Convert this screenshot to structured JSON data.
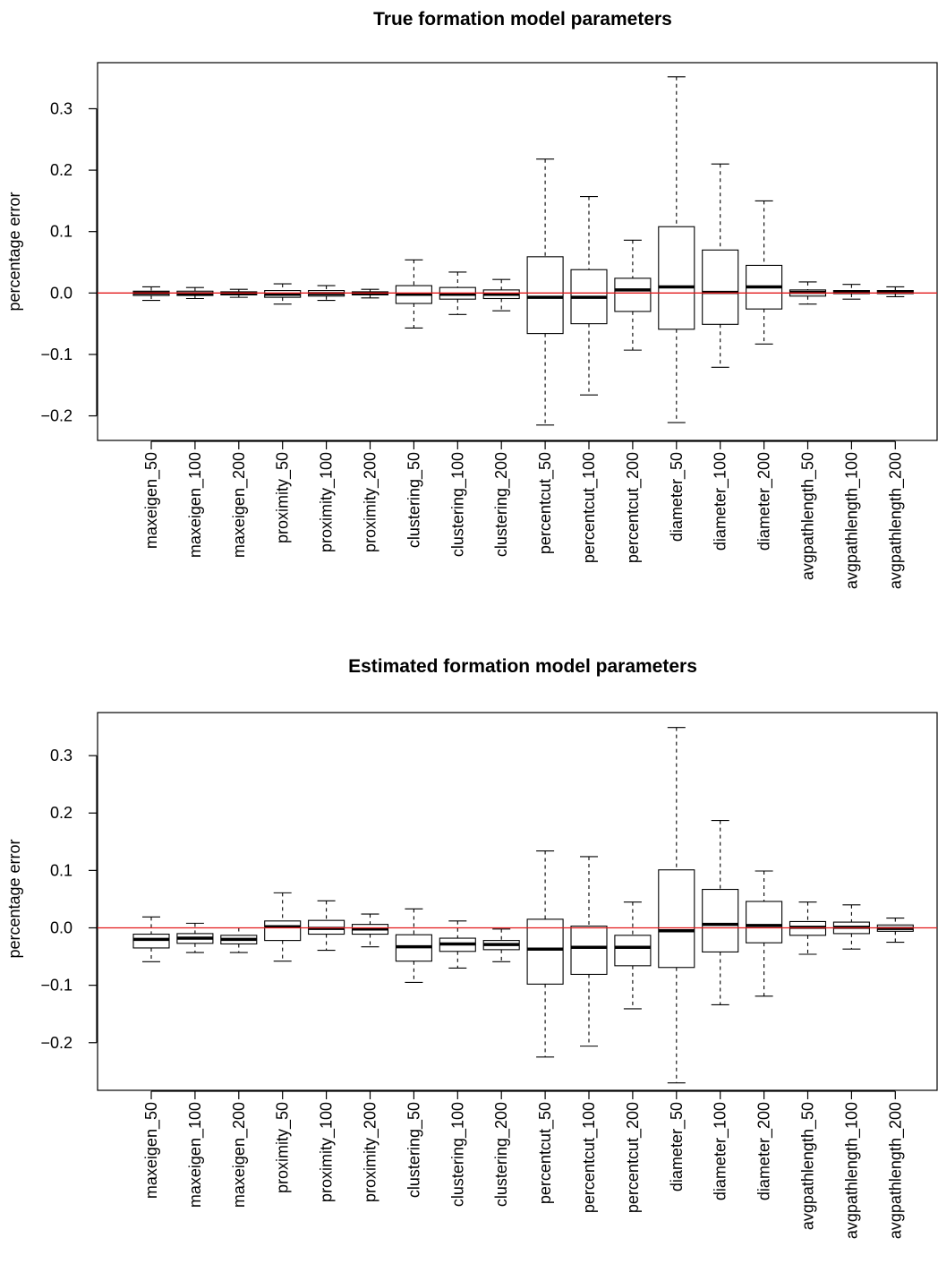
{
  "colors": {
    "reference_line": "#e31a1c",
    "box_stroke": "#000000",
    "background": "#ffffff"
  },
  "chart_data": [
    {
      "type": "box",
      "title": "True formation model parameters",
      "ylabel": "percentage error",
      "ylim": [
        -0.24,
        0.375
      ],
      "yticks": [
        -0.2,
        -0.1,
        0.0,
        0.1,
        0.2,
        0.3
      ],
      "ytick_labels": [
        "−0.2",
        "−0.1",
        "0.0",
        "0.1",
        "0.2",
        "0.3"
      ],
      "reference_line": 0.0,
      "categories": [
        "maxeigen_50",
        "maxeigen_100",
        "maxeigen_200",
        "proximity_50",
        "proximity_100",
        "proximity_200",
        "clustering_50",
        "clustering_100",
        "clustering_200",
        "percentcut_50",
        "percentcut_100",
        "percentcut_200",
        "diameter_50",
        "diameter_100",
        "diameter_200",
        "avgpathlength_50",
        "avgpathlength_100",
        "avgpathlength_200"
      ],
      "boxes": [
        {
          "whisker_low": -0.012,
          "q1": -0.004,
          "median": 0.0,
          "q3": 0.003,
          "whisker_high": 0.01
        },
        {
          "whisker_low": -0.009,
          "q1": -0.004,
          "median": -0.001,
          "q3": 0.003,
          "whisker_high": 0.009
        },
        {
          "whisker_low": -0.007,
          "q1": -0.003,
          "median": -0.001,
          "q3": 0.002,
          "whisker_high": 0.006
        },
        {
          "whisker_low": -0.018,
          "q1": -0.007,
          "median": -0.002,
          "q3": 0.004,
          "whisker_high": 0.015
        },
        {
          "whisker_low": -0.012,
          "q1": -0.005,
          "median": -0.001,
          "q3": 0.004,
          "whisker_high": 0.012
        },
        {
          "whisker_low": -0.008,
          "q1": -0.003,
          "median": -0.001,
          "q3": 0.002,
          "whisker_high": 0.006
        },
        {
          "whisker_low": -0.057,
          "q1": -0.017,
          "median": -0.002,
          "q3": 0.012,
          "whisker_high": 0.054
        },
        {
          "whisker_low": -0.035,
          "q1": -0.01,
          "median": -0.002,
          "q3": 0.009,
          "whisker_high": 0.034
        },
        {
          "whisker_low": -0.029,
          "q1": -0.009,
          "median": -0.002,
          "q3": 0.005,
          "whisker_high": 0.022
        },
        {
          "whisker_low": -0.215,
          "q1": -0.066,
          "median": -0.007,
          "q3": 0.059,
          "whisker_high": 0.218
        },
        {
          "whisker_low": -0.166,
          "q1": -0.05,
          "median": -0.007,
          "q3": 0.038,
          "whisker_high": 0.157
        },
        {
          "whisker_low": -0.093,
          "q1": -0.03,
          "median": 0.005,
          "q3": 0.024,
          "whisker_high": 0.086
        },
        {
          "whisker_low": -0.211,
          "q1": -0.059,
          "median": 0.01,
          "q3": 0.108,
          "whisker_high": 0.352
        },
        {
          "whisker_low": -0.121,
          "q1": -0.051,
          "median": 0.001,
          "q3": 0.07,
          "whisker_high": 0.21
        },
        {
          "whisker_low": -0.083,
          "q1": -0.026,
          "median": 0.01,
          "q3": 0.045,
          "whisker_high": 0.15
        },
        {
          "whisker_low": -0.018,
          "q1": -0.005,
          "median": 0.001,
          "q3": 0.005,
          "whisker_high": 0.018
        },
        {
          "whisker_low": -0.01,
          "q1": -0.001,
          "median": 0.002,
          "q3": 0.004,
          "whisker_high": 0.014
        },
        {
          "whisker_low": -0.006,
          "q1": -0.001,
          "median": 0.002,
          "q3": 0.004,
          "whisker_high": 0.01
        }
      ]
    },
    {
      "type": "box",
      "title": "Estimated formation model parameters",
      "ylabel": "percentage error",
      "ylim": [
        -0.283,
        0.375
      ],
      "yticks": [
        -0.2,
        -0.1,
        0.0,
        0.1,
        0.2,
        0.3
      ],
      "ytick_labels": [
        "−0.2",
        "−0.1",
        "0.0",
        "0.1",
        "0.2",
        "0.3"
      ],
      "reference_line": 0.0,
      "categories": [
        "maxeigen_50",
        "maxeigen_100",
        "maxeigen_200",
        "proximity_50",
        "proximity_100",
        "proximity_200",
        "clustering_50",
        "clustering_100",
        "clustering_200",
        "percentcut_50",
        "percentcut_100",
        "percentcut_200",
        "diameter_50",
        "diameter_100",
        "diameter_200",
        "avgpathlength_50",
        "avgpathlength_100",
        "avgpathlength_200"
      ],
      "boxes": [
        {
          "whisker_low": -0.059,
          "q1": -0.035,
          "median": -0.02,
          "q3": -0.011,
          "whisker_high": 0.019
        },
        {
          "whisker_low": -0.043,
          "q1": -0.027,
          "median": -0.018,
          "q3": -0.01,
          "whisker_high": 0.008
        },
        {
          "whisker_low": -0.043,
          "q1": -0.028,
          "median": -0.02,
          "q3": -0.013,
          "whisker_high": 0.0
        },
        {
          "whisker_low": -0.058,
          "q1": -0.022,
          "median": 0.002,
          "q3": 0.012,
          "whisker_high": 0.061
        },
        {
          "whisker_low": -0.039,
          "q1": -0.011,
          "median": -0.001,
          "q3": 0.013,
          "whisker_high": 0.047
        },
        {
          "whisker_low": -0.033,
          "q1": -0.011,
          "median": -0.002,
          "q3": 0.006,
          "whisker_high": 0.024
        },
        {
          "whisker_low": -0.095,
          "q1": -0.058,
          "median": -0.033,
          "q3": -0.012,
          "whisker_high": 0.033
        },
        {
          "whisker_low": -0.07,
          "q1": -0.041,
          "median": -0.028,
          "q3": -0.018,
          "whisker_high": 0.012
        },
        {
          "whisker_low": -0.059,
          "q1": -0.038,
          "median": -0.029,
          "q3": -0.022,
          "whisker_high": -0.002
        },
        {
          "whisker_low": -0.225,
          "q1": -0.098,
          "median": -0.037,
          "q3": 0.015,
          "whisker_high": 0.134
        },
        {
          "whisker_low": -0.206,
          "q1": -0.081,
          "median": -0.034,
          "q3": 0.003,
          "whisker_high": 0.124
        },
        {
          "whisker_low": -0.141,
          "q1": -0.066,
          "median": -0.034,
          "q3": -0.013,
          "whisker_high": 0.045
        },
        {
          "whisker_low": -0.27,
          "q1": -0.069,
          "median": -0.005,
          "q3": 0.101,
          "whisker_high": 0.349
        },
        {
          "whisker_low": -0.134,
          "q1": -0.042,
          "median": 0.006,
          "q3": 0.067,
          "whisker_high": 0.187
        },
        {
          "whisker_low": -0.119,
          "q1": -0.026,
          "median": 0.004,
          "q3": 0.046,
          "whisker_high": 0.099
        },
        {
          "whisker_low": -0.046,
          "q1": -0.013,
          "median": 0.001,
          "q3": 0.011,
          "whisker_high": 0.045
        },
        {
          "whisker_low": -0.037,
          "q1": -0.01,
          "median": 0.001,
          "q3": 0.01,
          "whisker_high": 0.04
        },
        {
          "whisker_low": -0.025,
          "q1": -0.006,
          "median": -0.001,
          "q3": 0.005,
          "whisker_high": 0.017
        }
      ]
    }
  ]
}
